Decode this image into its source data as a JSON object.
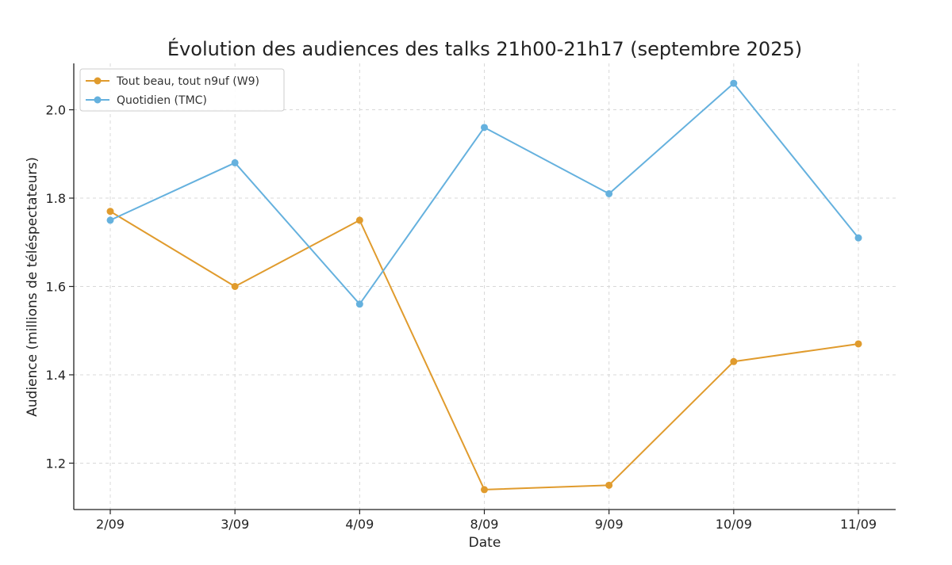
{
  "chart_data": {
    "type": "line",
    "title": "Évolution des audiences des talks 21h00-21h17 (septembre 2025)",
    "xlabel": "Date",
    "ylabel": "Audience (millions de téléspectateurs)",
    "categories": [
      "2/09",
      "3/09",
      "4/09",
      "8/09",
      "9/09",
      "10/09",
      "11/09"
    ],
    "y_ticks": [
      "1.2",
      "1.4",
      "1.6",
      "1.8",
      "2.0"
    ],
    "ylim": [
      1.095,
      2.105
    ],
    "grid": true,
    "legend_position": "top-left",
    "series": [
      {
        "name": "Tout beau, tout n9uf (W9)",
        "color": "#e09b2d",
        "values": [
          1.77,
          1.6,
          1.75,
          1.14,
          1.15,
          1.43,
          1.47
        ]
      },
      {
        "name": "Quotidien (TMC)",
        "color": "#65b1de",
        "values": [
          1.75,
          1.88,
          1.56,
          1.96,
          1.81,
          2.06,
          1.71
        ]
      }
    ]
  }
}
